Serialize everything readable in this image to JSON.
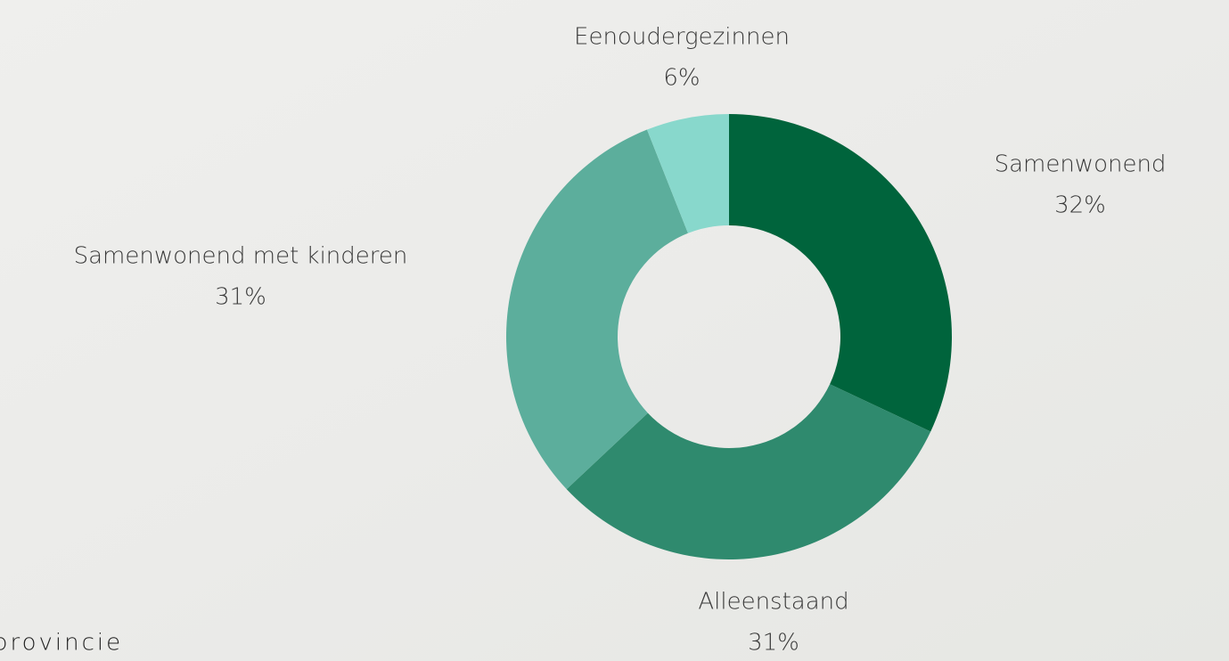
{
  "chart_data": {
    "type": "pie",
    "donut": true,
    "categories": [
      "Samenwonend",
      "Alleenstaand",
      "Samenwonend met kinderen",
      "Eenoudergezinnen"
    ],
    "values": [
      32,
      31,
      31,
      6
    ],
    "value_labels": [
      "32%",
      "31%",
      "31%",
      "6%"
    ],
    "colors": [
      "#00643c",
      "#2f8a6e",
      "#5cae9c",
      "#88d8cc"
    ]
  },
  "logo_text": "provincie"
}
